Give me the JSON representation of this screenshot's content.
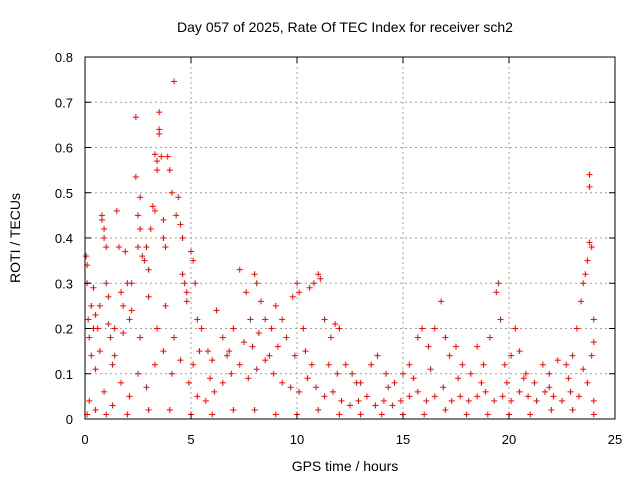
{
  "chart_data": {
    "type": "scatter",
    "title": "Day 057 of 2025, Rate Of TEC Index for receiver sch2",
    "xlabel": "GPS time / hours",
    "ylabel": "ROTI / TECUs",
    "xlim": [
      0,
      25
    ],
    "ylim": [
      0,
      0.8
    ],
    "x_ticks": [
      0,
      5,
      10,
      15,
      20,
      25
    ],
    "y_ticks": [
      0,
      0.1,
      0.2,
      0.3,
      0.4,
      0.5,
      0.6,
      0.7,
      0.8
    ],
    "grid": true,
    "marker": "+",
    "series": [
      {
        "color": "#ff0000",
        "points": [
          [
            0.05,
            0.36
          ],
          [
            0.1,
            0.34
          ],
          [
            0.1,
            0.3
          ],
          [
            0.15,
            0.22
          ],
          [
            0.2,
            0.18
          ],
          [
            0.3,
            0.25
          ],
          [
            0.3,
            0.14
          ],
          [
            0.4,
            0.2
          ],
          [
            0.5,
            0.11
          ],
          [
            0.5,
            0.23
          ],
          [
            0.6,
            0.2
          ],
          [
            0.7,
            0.25
          ],
          [
            0.8,
            0.44
          ],
          [
            0.8,
            0.45
          ],
          [
            0.9,
            0.4
          ],
          [
            0.9,
            0.42
          ],
          [
            1.0,
            0.38
          ],
          [
            1.0,
            0.3
          ],
          [
            1.1,
            0.27
          ],
          [
            1.2,
            0.18
          ],
          [
            1.3,
            0.12
          ],
          [
            1.4,
            0.2
          ],
          [
            1.5,
            0.46
          ],
          [
            1.6,
            0.38
          ],
          [
            1.7,
            0.28
          ],
          [
            1.8,
            0.25
          ],
          [
            1.9,
            0.37
          ],
          [
            2.0,
            0.3
          ],
          [
            2.1,
            0.22
          ],
          [
            2.2,
            0.3
          ],
          [
            2.4,
            0.667
          ],
          [
            2.4,
            0.535
          ],
          [
            2.5,
            0.45
          ],
          [
            2.5,
            0.38
          ],
          [
            2.6,
            0.49
          ],
          [
            2.6,
            0.42
          ],
          [
            2.7,
            0.36
          ],
          [
            2.8,
            0.35
          ],
          [
            2.9,
            0.38
          ],
          [
            3.0,
            0.33
          ],
          [
            3.1,
            0.42
          ],
          [
            3.2,
            0.47
          ],
          [
            3.3,
            0.46
          ],
          [
            3.3,
            0.585
          ],
          [
            3.4,
            0.57
          ],
          [
            3.4,
            0.55
          ],
          [
            3.5,
            0.678
          ],
          [
            3.5,
            0.64
          ],
          [
            3.5,
            0.63
          ],
          [
            3.6,
            0.58
          ],
          [
            3.7,
            0.44
          ],
          [
            3.7,
            0.4
          ],
          [
            3.8,
            0.38
          ],
          [
            3.9,
            0.58
          ],
          [
            4.0,
            0.55
          ],
          [
            4.1,
            0.5
          ],
          [
            4.2,
            0.746
          ],
          [
            4.3,
            0.45
          ],
          [
            4.4,
            0.49
          ],
          [
            4.5,
            0.43
          ],
          [
            4.6,
            0.4
          ],
          [
            4.7,
            0.3
          ],
          [
            4.8,
            0.28
          ],
          [
            5.0,
            0.37
          ],
          [
            5.1,
            0.35
          ],
          [
            5.2,
            0.3
          ],
          [
            5.3,
            0.22
          ],
          [
            5.5,
            0.2
          ],
          [
            5.8,
            0.15
          ],
          [
            6.2,
            0.24
          ],
          [
            6.5,
            0.18
          ],
          [
            6.8,
            0.15
          ],
          [
            7.0,
            0.2
          ],
          [
            7.3,
            0.33
          ],
          [
            7.6,
            0.28
          ],
          [
            7.8,
            0.22
          ],
          [
            8.0,
            0.32
          ],
          [
            8.1,
            0.3
          ],
          [
            8.3,
            0.26
          ],
          [
            8.5,
            0.22
          ],
          [
            8.8,
            0.2
          ],
          [
            9.0,
            0.25
          ],
          [
            9.3,
            0.22
          ],
          [
            9.5,
            0.18
          ],
          [
            9.8,
            0.27
          ],
          [
            10.0,
            0.3
          ],
          [
            10.1,
            0.28
          ],
          [
            10.3,
            0.2
          ],
          [
            10.6,
            0.29
          ],
          [
            10.8,
            0.3
          ],
          [
            11.0,
            0.32
          ],
          [
            11.1,
            0.31
          ],
          [
            11.3,
            0.22
          ],
          [
            11.6,
            0.18
          ],
          [
            11.8,
            0.21
          ],
          [
            12.0,
            0.2
          ],
          [
            12.3,
            0.12
          ],
          [
            12.6,
            0.1
          ],
          [
            13.0,
            0.08
          ],
          [
            13.5,
            0.12
          ],
          [
            13.8,
            0.14
          ],
          [
            14.2,
            0.1
          ],
          [
            14.6,
            0.08
          ],
          [
            15.0,
            0.1
          ],
          [
            15.3,
            0.12
          ],
          [
            15.7,
            0.18
          ],
          [
            15.9,
            0.2
          ],
          [
            16.2,
            0.16
          ],
          [
            16.5,
            0.2
          ],
          [
            16.8,
            0.26
          ],
          [
            17.0,
            0.18
          ],
          [
            17.2,
            0.14
          ],
          [
            17.5,
            0.16
          ],
          [
            17.8,
            0.12
          ],
          [
            18.2,
            0.1
          ],
          [
            18.5,
            0.16
          ],
          [
            18.8,
            0.12
          ],
          [
            19.1,
            0.18
          ],
          [
            19.4,
            0.28
          ],
          [
            19.5,
            0.3
          ],
          [
            19.6,
            0.22
          ],
          [
            19.8,
            0.12
          ],
          [
            20.1,
            0.14
          ],
          [
            20.3,
            0.2
          ],
          [
            20.5,
            0.15
          ],
          [
            20.8,
            0.1
          ],
          [
            21.2,
            0.08
          ],
          [
            21.6,
            0.12
          ],
          [
            21.9,
            0.1
          ],
          [
            22.3,
            0.13
          ],
          [
            22.7,
            0.12
          ],
          [
            23.0,
            0.14
          ],
          [
            23.2,
            0.2
          ],
          [
            23.4,
            0.26
          ],
          [
            23.5,
            0.3
          ],
          [
            23.6,
            0.32
          ],
          [
            23.7,
            0.35
          ],
          [
            23.8,
            0.39
          ],
          [
            23.8,
            0.54
          ],
          [
            23.8,
            0.513
          ],
          [
            23.9,
            0.38
          ],
          [
            24.0,
            0.22
          ],
          [
            24.0,
            0.17
          ],
          [
            0.2,
            0.04
          ],
          [
            0.5,
            0.02
          ],
          [
            0.9,
            0.06
          ],
          [
            1.3,
            0.03
          ],
          [
            1.7,
            0.08
          ],
          [
            2.1,
            0.05
          ],
          [
            2.5,
            0.1
          ],
          [
            2.9,
            0.07
          ],
          [
            3.3,
            0.12
          ],
          [
            3.7,
            0.15
          ],
          [
            4.1,
            0.1
          ],
          [
            4.5,
            0.13
          ],
          [
            4.9,
            0.08
          ],
          [
            5.3,
            0.05
          ],
          [
            5.7,
            0.04
          ],
          [
            6.1,
            0.06
          ],
          [
            6.5,
            0.08
          ],
          [
            6.9,
            0.1
          ],
          [
            7.3,
            0.12
          ],
          [
            7.7,
            0.09
          ],
          [
            8.1,
            0.11
          ],
          [
            8.5,
            0.13
          ],
          [
            8.9,
            0.1
          ],
          [
            9.3,
            0.08
          ],
          [
            9.7,
            0.07
          ],
          [
            10.1,
            0.06
          ],
          [
            10.5,
            0.09
          ],
          [
            10.9,
            0.07
          ],
          [
            11.3,
            0.05
          ],
          [
            11.7,
            0.06
          ],
          [
            12.1,
            0.04
          ],
          [
            12.5,
            0.03
          ],
          [
            12.9,
            0.04
          ],
          [
            13.3,
            0.05
          ],
          [
            13.7,
            0.03
          ],
          [
            14.1,
            0.04
          ],
          [
            14.5,
            0.03
          ],
          [
            14.9,
            0.04
          ],
          [
            15.3,
            0.05
          ],
          [
            15.7,
            0.06
          ],
          [
            16.1,
            0.04
          ],
          [
            16.5,
            0.05
          ],
          [
            16.9,
            0.07
          ],
          [
            17.3,
            0.04
          ],
          [
            17.7,
            0.05
          ],
          [
            18.1,
            0.04
          ],
          [
            18.5,
            0.05
          ],
          [
            18.9,
            0.06
          ],
          [
            19.3,
            0.04
          ],
          [
            19.7,
            0.05
          ],
          [
            20.1,
            0.04
          ],
          [
            20.5,
            0.06
          ],
          [
            20.9,
            0.05
          ],
          [
            21.3,
            0.04
          ],
          [
            21.7,
            0.06
          ],
          [
            22.1,
            0.05
          ],
          [
            22.5,
            0.04
          ],
          [
            22.9,
            0.06
          ],
          [
            23.3,
            0.05
          ],
          [
            23.7,
            0.08
          ],
          [
            24.0,
            0.04
          ],
          [
            0.1,
            0.01
          ],
          [
            1.0,
            0.01
          ],
          [
            2.0,
            0.01
          ],
          [
            3.0,
            0.02
          ],
          [
            4.0,
            0.02
          ],
          [
            5.0,
            0.01
          ],
          [
            6.0,
            0.01
          ],
          [
            7.0,
            0.02
          ],
          [
            8.0,
            0.02
          ],
          [
            9.0,
            0.01
          ],
          [
            10.0,
            0.01
          ],
          [
            11.0,
            0.02
          ],
          [
            12.0,
            0.01
          ],
          [
            13.0,
            0.01
          ],
          [
            14.0,
            0.01
          ],
          [
            15.0,
            0.01
          ],
          [
            16.0,
            0.01
          ],
          [
            17.0,
            0.02
          ],
          [
            18.0,
            0.01
          ],
          [
            19.0,
            0.01
          ],
          [
            20.0,
            0.01
          ],
          [
            21.0,
            0.01
          ],
          [
            22.0,
            0.02
          ],
          [
            23.0,
            0.02
          ],
          [
            24.0,
            0.01
          ],
          [
            4.6,
            0.32
          ],
          [
            4.8,
            0.26
          ],
          [
            5.4,
            0.15
          ],
          [
            6.0,
            0.13
          ],
          [
            7.5,
            0.17
          ],
          [
            8.2,
            0.19
          ],
          [
            9.1,
            0.16
          ],
          [
            9.9,
            0.14
          ],
          [
            10.7,
            0.12
          ],
          [
            11.9,
            0.1
          ],
          [
            0.4,
            0.29
          ],
          [
            0.7,
            0.15
          ],
          [
            1.1,
            0.21
          ],
          [
            1.4,
            0.14
          ],
          [
            1.8,
            0.19
          ],
          [
            2.2,
            0.24
          ],
          [
            2.6,
            0.18
          ],
          [
            3.0,
            0.27
          ],
          [
            3.4,
            0.2
          ],
          [
            3.8,
            0.25
          ],
          [
            4.2,
            0.18
          ],
          [
            5.1,
            0.12
          ],
          [
            5.9,
            0.09
          ],
          [
            6.7,
            0.14
          ],
          [
            7.9,
            0.16
          ],
          [
            8.7,
            0.14
          ],
          [
            10.4,
            0.15
          ],
          [
            11.5,
            0.12
          ],
          [
            12.8,
            0.08
          ],
          [
            14.3,
            0.07
          ],
          [
            15.5,
            0.09
          ],
          [
            16.3,
            0.11
          ],
          [
            17.6,
            0.09
          ],
          [
            18.7,
            0.08
          ],
          [
            19.9,
            0.08
          ],
          [
            20.7,
            0.09
          ],
          [
            21.9,
            0.07
          ],
          [
            22.8,
            0.09
          ],
          [
            23.5,
            0.11
          ],
          [
            23.9,
            0.14
          ]
        ]
      }
    ]
  }
}
